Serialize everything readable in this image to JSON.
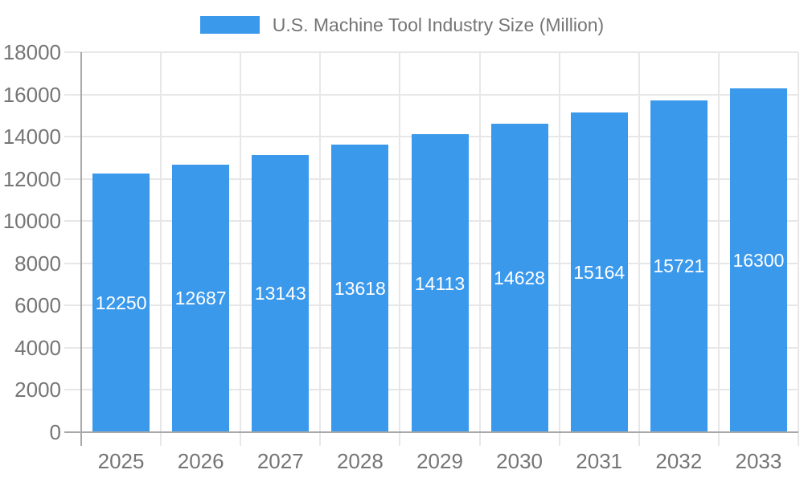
{
  "legend": {
    "label": "U.S. Machine Tool Industry Size (Million)",
    "swatch_color": "#3B99EC",
    "text_color": "#757575"
  },
  "chart_data": {
    "type": "bar",
    "title": "U.S. Machine Tool Industry Size (Million)",
    "series_name": "U.S. Machine Tool Industry Size (Million)",
    "categories": [
      "2025",
      "2026",
      "2027",
      "2028",
      "2029",
      "2030",
      "2031",
      "2032",
      "2033"
    ],
    "values": [
      12250,
      12687,
      13143,
      13618,
      14113,
      14628,
      15164,
      15721,
      16300
    ],
    "xlabel": "",
    "ylabel": "",
    "ylim": [
      0,
      18000
    ],
    "y_ticks": [
      0,
      2000,
      4000,
      6000,
      8000,
      10000,
      12000,
      14000,
      16000,
      18000
    ],
    "grid": true,
    "legend_position": "top-center",
    "value_label_position": "inside-center",
    "colors": {
      "bar": "#3B99EC",
      "grid": "#E7E7E7",
      "axis": "#A8A8A8",
      "tick_label": "#757575",
      "value_label": "#FFFFFF",
      "background": "#FFFFFF"
    }
  }
}
